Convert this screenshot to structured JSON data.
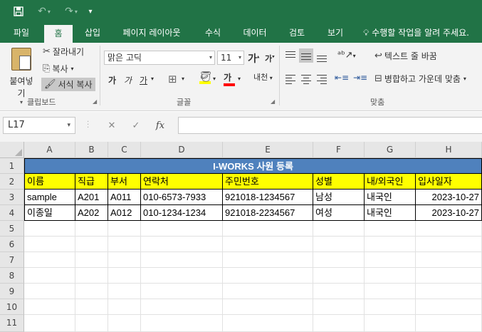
{
  "quick_access": {
    "save": "save-icon",
    "undo": "undo-icon",
    "redo": "redo-icon"
  },
  "tabs": [
    "파일",
    "홈",
    "삽입",
    "페이지 레이아웃",
    "수식",
    "데이터",
    "검토",
    "보기"
  ],
  "tell_me": "수행할 작업을 알려 주세요.",
  "clipboard": {
    "paste": "붙여넣기",
    "cut": "잘라내기",
    "copy": "복사",
    "format_painter": "서식 복사",
    "group_label": "클립보드"
  },
  "font": {
    "name": "맑은 고딕",
    "size": "11",
    "grow": "가",
    "shrink": "가",
    "bold": "가",
    "italic": "가",
    "underline": "가",
    "color_letter": "가",
    "phonetic": "내천",
    "group_label": "글꼴"
  },
  "alignment": {
    "wrap_text": "텍스트 줄 바꿈",
    "merge_center": "병합하고 가운데 맞춤",
    "group_label": "맞춤"
  },
  "formula_bar": {
    "name_box": "L17",
    "fx": "fx"
  },
  "colors": {
    "brand": "#217346",
    "title_fill": "#4f81bd",
    "header_fill": "#ffff00",
    "font_highlight": "#ffff00",
    "font_color": "#ff0000"
  },
  "columns": [
    "A",
    "B",
    "C",
    "D",
    "E",
    "F",
    "G",
    "H"
  ],
  "rows": [
    "1",
    "2",
    "3",
    "4",
    "5",
    "6",
    "7",
    "8",
    "9",
    "10",
    "11"
  ],
  "sheet": {
    "title": "I-WORKS 사원 등록",
    "headers": [
      "이름",
      "직급",
      "부서",
      "연락처",
      "주민번호",
      "성별",
      "내/외국인",
      "입사일자"
    ],
    "records": [
      [
        "sample",
        "A201",
        "A011",
        "010-6573-7933",
        "921018-1234567",
        "남성",
        "내국인",
        "2023-10-27"
      ],
      [
        "이종일",
        "A202",
        "A012",
        "010-1234-1234",
        "921018-2234567",
        "여성",
        "내국인",
        "2023-10-27"
      ]
    ]
  }
}
